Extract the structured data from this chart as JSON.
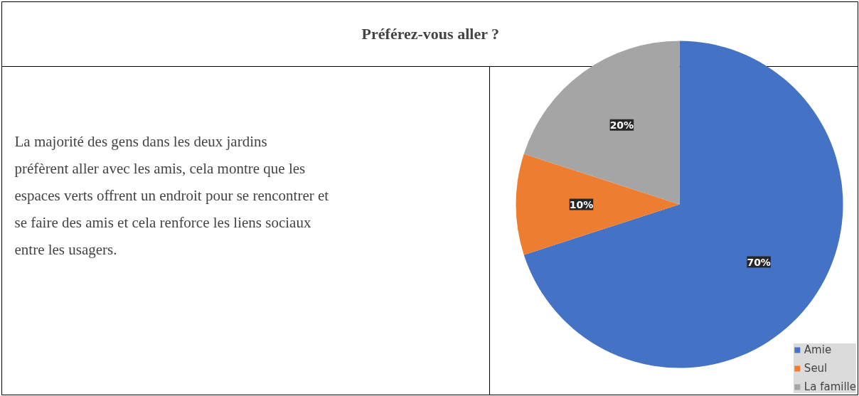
{
  "chart_data": {
    "type": "pie",
    "title": "Préférez-vous aller ?",
    "annotations": [
      "La majorité des gens dans les deux jardins préfèrent aller avec les amis, cela montre que les espaces verts offrent un endroit pour se rencontrer et se faire des amis et cela renforce les liens sociaux entre les usagers."
    ],
    "categories": [
      "Amie",
      "Seul",
      "La famille"
    ],
    "values": [
      70,
      10,
      20
    ],
    "colors": [
      "#4472c4",
      "#ed7d31",
      "#a5a5a5"
    ],
    "value_labels": [
      "70%",
      "10%",
      "20%"
    ],
    "legend": "bottom right"
  }
}
